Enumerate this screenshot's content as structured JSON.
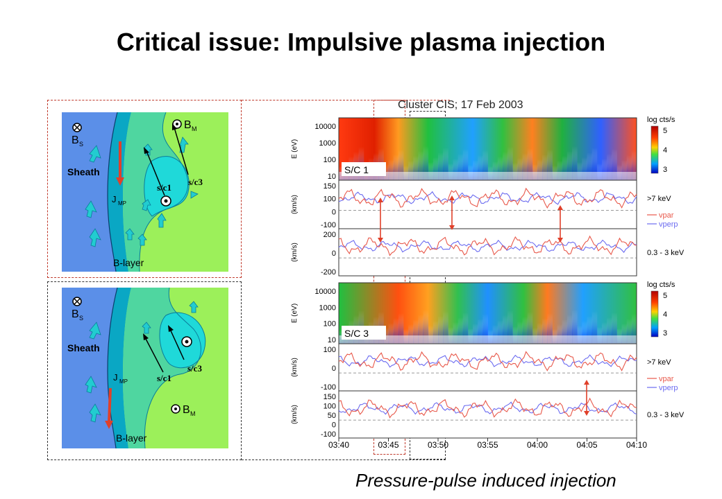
{
  "title": "Critical issue: Impulsive plasma injection",
  "caption": "Pressure-pulse induced injection",
  "sketch_top": {
    "B_s_label": "B",
    "B_s_sub": "S",
    "B_m_label": "B",
    "B_m_sub": "M",
    "sheath_label": "Sheath",
    "j_label": "J",
    "j_sub": "MP",
    "blayer_label": "B-layer",
    "sc1_label": "s/c1",
    "sc3_label": "s/c3"
  },
  "sketch_bottom": {
    "B_s_label": "B",
    "B_s_sub": "S",
    "B_m_label": "B",
    "B_m_sub": "M",
    "sheath_label": "Sheath",
    "j_label": "J",
    "j_sub": "MP",
    "blayer_label": "B-layer",
    "sc1_label": "s/c1",
    "sc3_label": "s/c3"
  },
  "cluster_title": "Cluster CIS; 17 Feb 2003",
  "spectrogram": {
    "ylabel": "E (eV)",
    "yticks": [
      "10000",
      "1000",
      "100",
      "10"
    ],
    "colorbar_label": "log cts/s",
    "colorbar_ticks": [
      "5",
      "4",
      "3"
    ]
  },
  "panels": {
    "sc1_label": "S/C 1",
    "sc3_label": "S/C 3",
    "vel_ylabel": "(km/s)",
    "sc1_v1_ticks": [
      "150",
      "100",
      "0",
      "-100"
    ],
    "sc1_v2_ticks": [
      "200",
      "0",
      "-200"
    ],
    "sc3_v1_ticks": [
      "100",
      "0",
      "-100"
    ],
    "sc3_v2_ticks": [
      "150",
      "100",
      "50",
      "0",
      "-100"
    ],
    "energy_high": ">7 keV",
    "energy_low": "0.3 - 3 keV",
    "legend_vpar": "vpar",
    "legend_vperp": "vperp"
  },
  "time_axis": [
    "03:40",
    "03:45",
    "03:50",
    "03:55",
    "04:00",
    "04:05",
    "04:10"
  ],
  "colors": {
    "vpar": "#e8584a",
    "vperp": "#6b6bf0",
    "sheath": "#5b8fe8",
    "boundary": "#0aa7c4",
    "magnetosphere": "#9cf05a",
    "arrow_red": "#e0402a"
  }
}
